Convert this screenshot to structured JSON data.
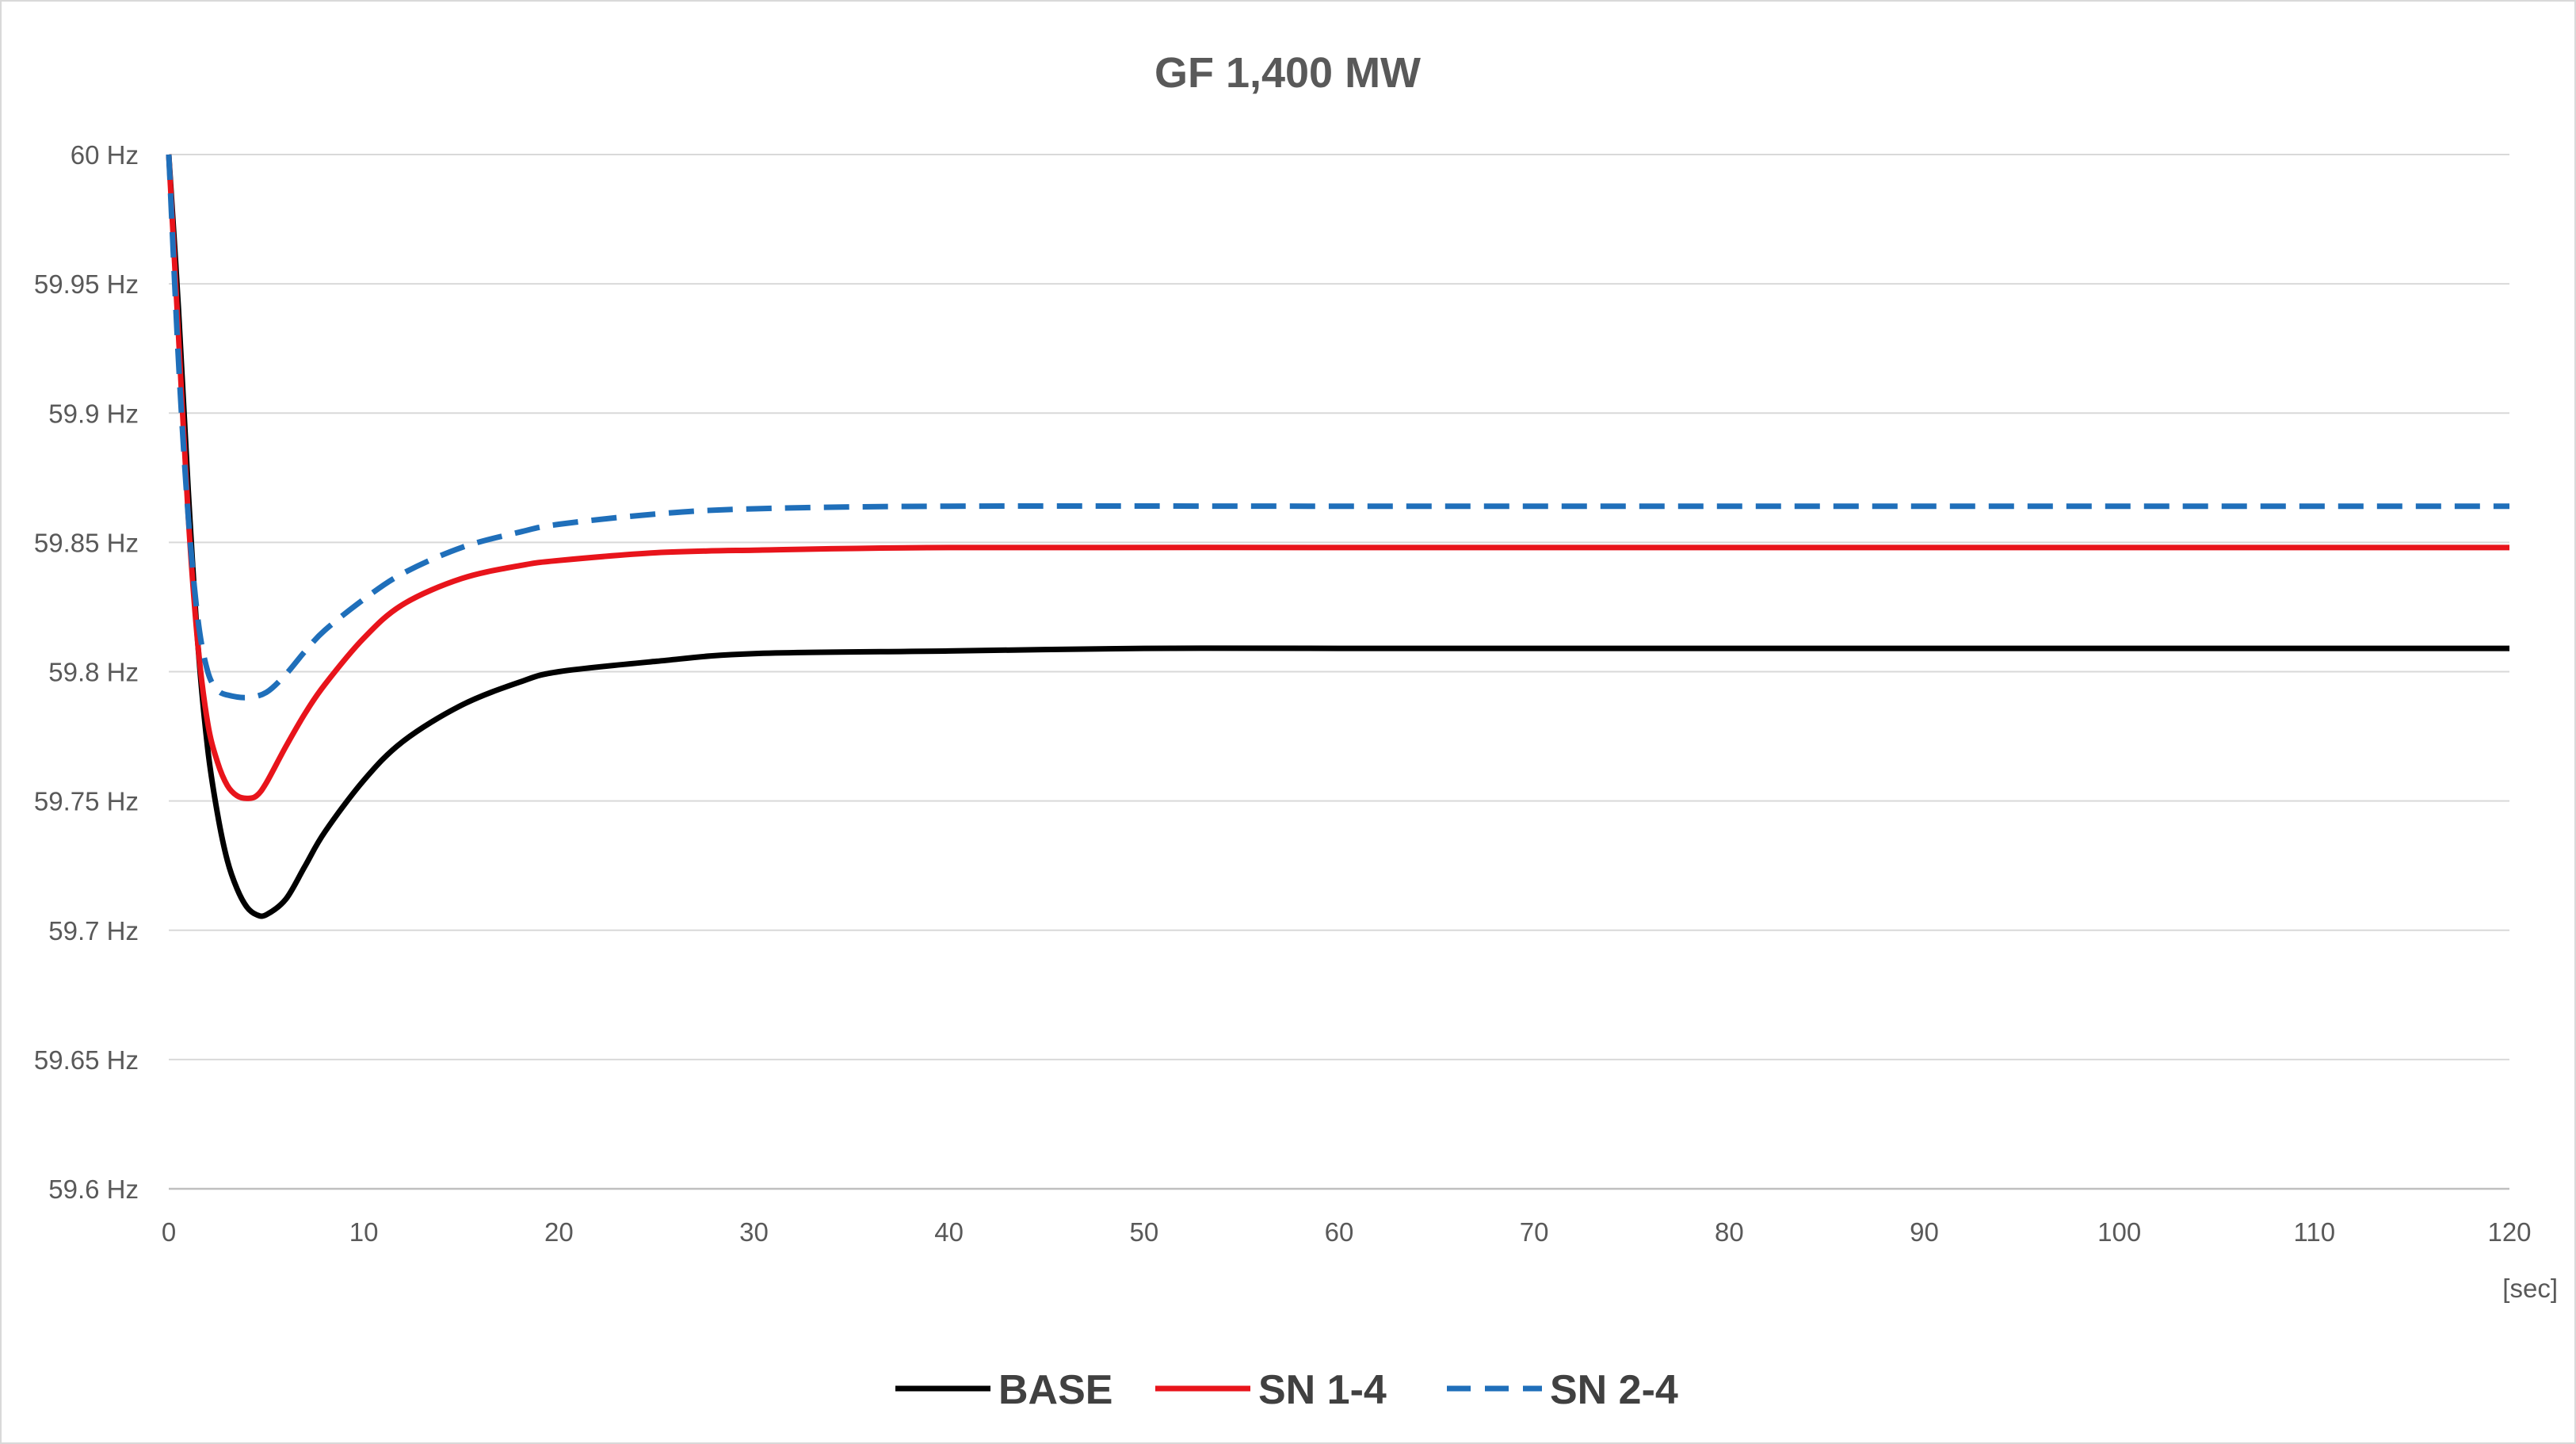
{
  "chart_data": {
    "type": "line",
    "title": "GF 1,400 MW",
    "x_unit_label": "[sec]",
    "xlim": [
      0,
      120
    ],
    "ylim": [
      59.6,
      60.0
    ],
    "x_ticks": [
      0,
      10,
      20,
      30,
      40,
      50,
      60,
      70,
      80,
      90,
      100,
      110,
      120
    ],
    "y_ticks": [
      {
        "value": 60.0,
        "label": "60 Hz"
      },
      {
        "value": 59.95,
        "label": "59.95 Hz"
      },
      {
        "value": 59.9,
        "label": "59.9 Hz"
      },
      {
        "value": 59.85,
        "label": "59.85 Hz"
      },
      {
        "value": 59.8,
        "label": "59.8 Hz"
      },
      {
        "value": 59.75,
        "label": "59.75 Hz"
      },
      {
        "value": 59.7,
        "label": "59.7 Hz"
      },
      {
        "value": 59.65,
        "label": "59.65 Hz"
      },
      {
        "value": 59.6,
        "label": "59.6 Hz"
      }
    ],
    "grid": "horizontal",
    "legend_position": "bottom",
    "series": [
      {
        "name": "BASE",
        "color": "#000000",
        "dash": "solid",
        "points": [
          [
            0,
            60.0
          ],
          [
            0.5,
            59.94
          ],
          [
            1,
            59.87
          ],
          [
            1.5,
            59.81
          ],
          [
            2,
            59.77
          ],
          [
            2.5,
            59.745
          ],
          [
            3,
            59.727
          ],
          [
            3.5,
            59.716
          ],
          [
            4,
            59.709
          ],
          [
            4.5,
            59.706
          ],
          [
            5,
            59.706
          ],
          [
            6,
            59.712
          ],
          [
            7,
            59.725
          ],
          [
            8,
            59.738
          ],
          [
            10,
            59.758
          ],
          [
            12,
            59.773
          ],
          [
            15,
            59.787
          ],
          [
            18,
            59.796
          ],
          [
            20,
            59.8
          ],
          [
            25,
            59.804
          ],
          [
            30,
            59.807
          ],
          [
            40,
            59.808
          ],
          [
            50,
            59.809
          ],
          [
            60,
            59.809
          ],
          [
            80,
            59.809
          ],
          [
            100,
            59.809
          ],
          [
            120,
            59.809
          ]
        ]
      },
      {
        "name": "SN 1-4",
        "color": "#e8141b",
        "dash": "solid",
        "points": [
          [
            0,
            60.0
          ],
          [
            0.5,
            59.93
          ],
          [
            1,
            59.86
          ],
          [
            1.5,
            59.81
          ],
          [
            2,
            59.78
          ],
          [
            2.5,
            59.765
          ],
          [
            3,
            59.756
          ],
          [
            3.5,
            59.752
          ],
          [
            4,
            59.751
          ],
          [
            4.5,
            59.752
          ],
          [
            5,
            59.757
          ],
          [
            6,
            59.771
          ],
          [
            7,
            59.784
          ],
          [
            8,
            59.795
          ],
          [
            10,
            59.813
          ],
          [
            12,
            59.826
          ],
          [
            15,
            59.836
          ],
          [
            18,
            59.841
          ],
          [
            20,
            59.843
          ],
          [
            25,
            59.846
          ],
          [
            30,
            59.847
          ],
          [
            40,
            59.848
          ],
          [
            60,
            59.848
          ],
          [
            80,
            59.848
          ],
          [
            100,
            59.848
          ],
          [
            120,
            59.848
          ]
        ]
      },
      {
        "name": "SN 2-4",
        "color": "#1f6fba",
        "dash": "dashed",
        "points": [
          [
            0,
            60.0
          ],
          [
            0.5,
            59.92
          ],
          [
            1,
            59.86
          ],
          [
            1.5,
            59.82
          ],
          [
            2,
            59.8
          ],
          [
            2.5,
            59.793
          ],
          [
            3,
            59.791
          ],
          [
            4,
            59.79
          ],
          [
            5,
            59.792
          ],
          [
            6,
            59.799
          ],
          [
            7,
            59.808
          ],
          [
            8,
            59.816
          ],
          [
            10,
            59.828
          ],
          [
            12,
            59.838
          ],
          [
            15,
            59.848
          ],
          [
            18,
            59.854
          ],
          [
            20,
            59.857
          ],
          [
            25,
            59.861
          ],
          [
            30,
            59.863
          ],
          [
            40,
            59.864
          ],
          [
            60,
            59.864
          ],
          [
            80,
            59.864
          ],
          [
            100,
            59.864
          ],
          [
            120,
            59.864
          ]
        ]
      }
    ]
  }
}
